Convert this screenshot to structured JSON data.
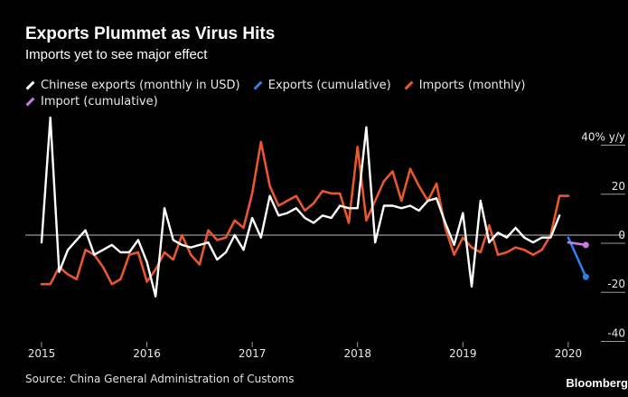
{
  "header": {
    "title": "Exports Plummet as Virus Hits",
    "subtitle": "Imports yet to see major effect"
  },
  "legend": [
    {
      "label": "Chinese exports (monthly in USD)",
      "color": "#ffffff"
    },
    {
      "label": "Exports (cumulative)",
      "color": "#2f7fe6"
    },
    {
      "label": "Imports (monthly)",
      "color": "#e8572d"
    },
    {
      "label": "Import (cumulative)",
      "color": "#c77be6"
    }
  ],
  "footer": {
    "source": "Source: China General Administration of Customs",
    "brand": "Bloomberg"
  },
  "chart_data": {
    "type": "line",
    "ylim": [
      -45,
      45
    ],
    "xlim": [
      2015.0,
      2020.25
    ],
    "yticks": [
      {
        "value": 40,
        "label": "40% y/y"
      },
      {
        "value": 20,
        "label": "20"
      },
      {
        "value": 0,
        "label": "0"
      },
      {
        "value": -20,
        "label": "-20"
      },
      {
        "value": -40,
        "label": "-40"
      }
    ],
    "xticks": [
      "2015",
      "2016",
      "2017",
      "2018",
      "2019",
      "2020"
    ],
    "zero_line": true,
    "grid": false,
    "series": [
      {
        "name": "Chinese exports (monthly in USD)",
        "color": "#ffffff",
        "x": [
          2015.0,
          2015.083,
          2015.167,
          2015.25,
          2015.333,
          2015.417,
          2015.5,
          2015.583,
          2015.667,
          2015.75,
          2015.833,
          2015.917,
          2016.0,
          2016.083,
          2016.167,
          2016.25,
          2016.333,
          2016.417,
          2016.5,
          2016.583,
          2016.667,
          2016.75,
          2016.833,
          2016.917,
          2017.0,
          2017.083,
          2017.167,
          2017.25,
          2017.333,
          2017.417,
          2017.5,
          2017.583,
          2017.667,
          2017.75,
          2017.833,
          2017.917,
          2018.0,
          2018.083,
          2018.167,
          2018.25,
          2018.333,
          2018.417,
          2018.5,
          2018.583,
          2018.667,
          2018.75,
          2018.833,
          2018.917,
          2019.0,
          2019.083,
          2019.167,
          2019.25,
          2019.333,
          2019.417,
          2019.5,
          2019.583,
          2019.667,
          2019.75,
          2019.833,
          2019.917
        ],
        "values": [
          -3,
          48,
          -15,
          -6,
          -2,
          2,
          -8,
          -6,
          -4,
          -7,
          -7,
          -2,
          -11,
          -25,
          11,
          -2,
          -4,
          -5,
          -4,
          -3,
          -10,
          -7,
          0,
          -6,
          7,
          -1,
          16,
          8,
          9,
          11,
          7,
          5,
          8,
          7,
          12,
          11,
          11,
          44,
          -3,
          12,
          12,
          11,
          12,
          10,
          14,
          15,
          5,
          -4,
          9,
          -21,
          14,
          -3,
          1,
          -1,
          3,
          -1,
          -3,
          -1,
          -1,
          8
        ]
      },
      {
        "name": "Imports (monthly)",
        "color": "#e8572d",
        "x": [
          2015.0,
          2015.083,
          2015.167,
          2015.25,
          2015.333,
          2015.417,
          2015.5,
          2015.583,
          2015.667,
          2015.75,
          2015.833,
          2015.917,
          2016.0,
          2016.083,
          2016.167,
          2016.25,
          2016.333,
          2016.417,
          2016.5,
          2016.583,
          2016.667,
          2016.75,
          2016.833,
          2016.917,
          2017.0,
          2017.083,
          2017.167,
          2017.25,
          2017.333,
          2017.417,
          2017.5,
          2017.583,
          2017.667,
          2017.75,
          2017.833,
          2017.917,
          2018.0,
          2018.083,
          2018.167,
          2018.25,
          2018.333,
          2018.417,
          2018.5,
          2018.583,
          2018.667,
          2018.75,
          2018.833,
          2018.917,
          2019.0,
          2019.083,
          2019.167,
          2019.25,
          2019.333,
          2019.417,
          2019.5,
          2019.583,
          2019.667,
          2019.75,
          2019.833,
          2019.917,
          2020.0
        ],
        "values": [
          -20,
          -20,
          -13,
          -16,
          -18,
          -6,
          -8,
          -13,
          -20,
          -18,
          -8,
          -7,
          -19,
          -14,
          -7,
          -10,
          0,
          -8,
          -12,
          2,
          -2,
          -1,
          6,
          3,
          17,
          38,
          20,
          12,
          14,
          16,
          10,
          13,
          18,
          17,
          17,
          5,
          36,
          6,
          14,
          22,
          26,
          14,
          27,
          20,
          14,
          21,
          3,
          -8,
          -1,
          -5,
          -7,
          4,
          -8,
          -7,
          -5,
          -6,
          -8,
          -6,
          0,
          16,
          16
        ]
      },
      {
        "name": "Exports (cumulative)",
        "color": "#2f7fe6",
        "x": [
          2020.0,
          2020.167
        ],
        "values": [
          -1,
          -17
        ]
      },
      {
        "name": "Import (cumulative)",
        "color": "#c77be6",
        "x": [
          2020.0,
          2020.167
        ],
        "values": [
          -3,
          -4
        ]
      }
    ]
  }
}
